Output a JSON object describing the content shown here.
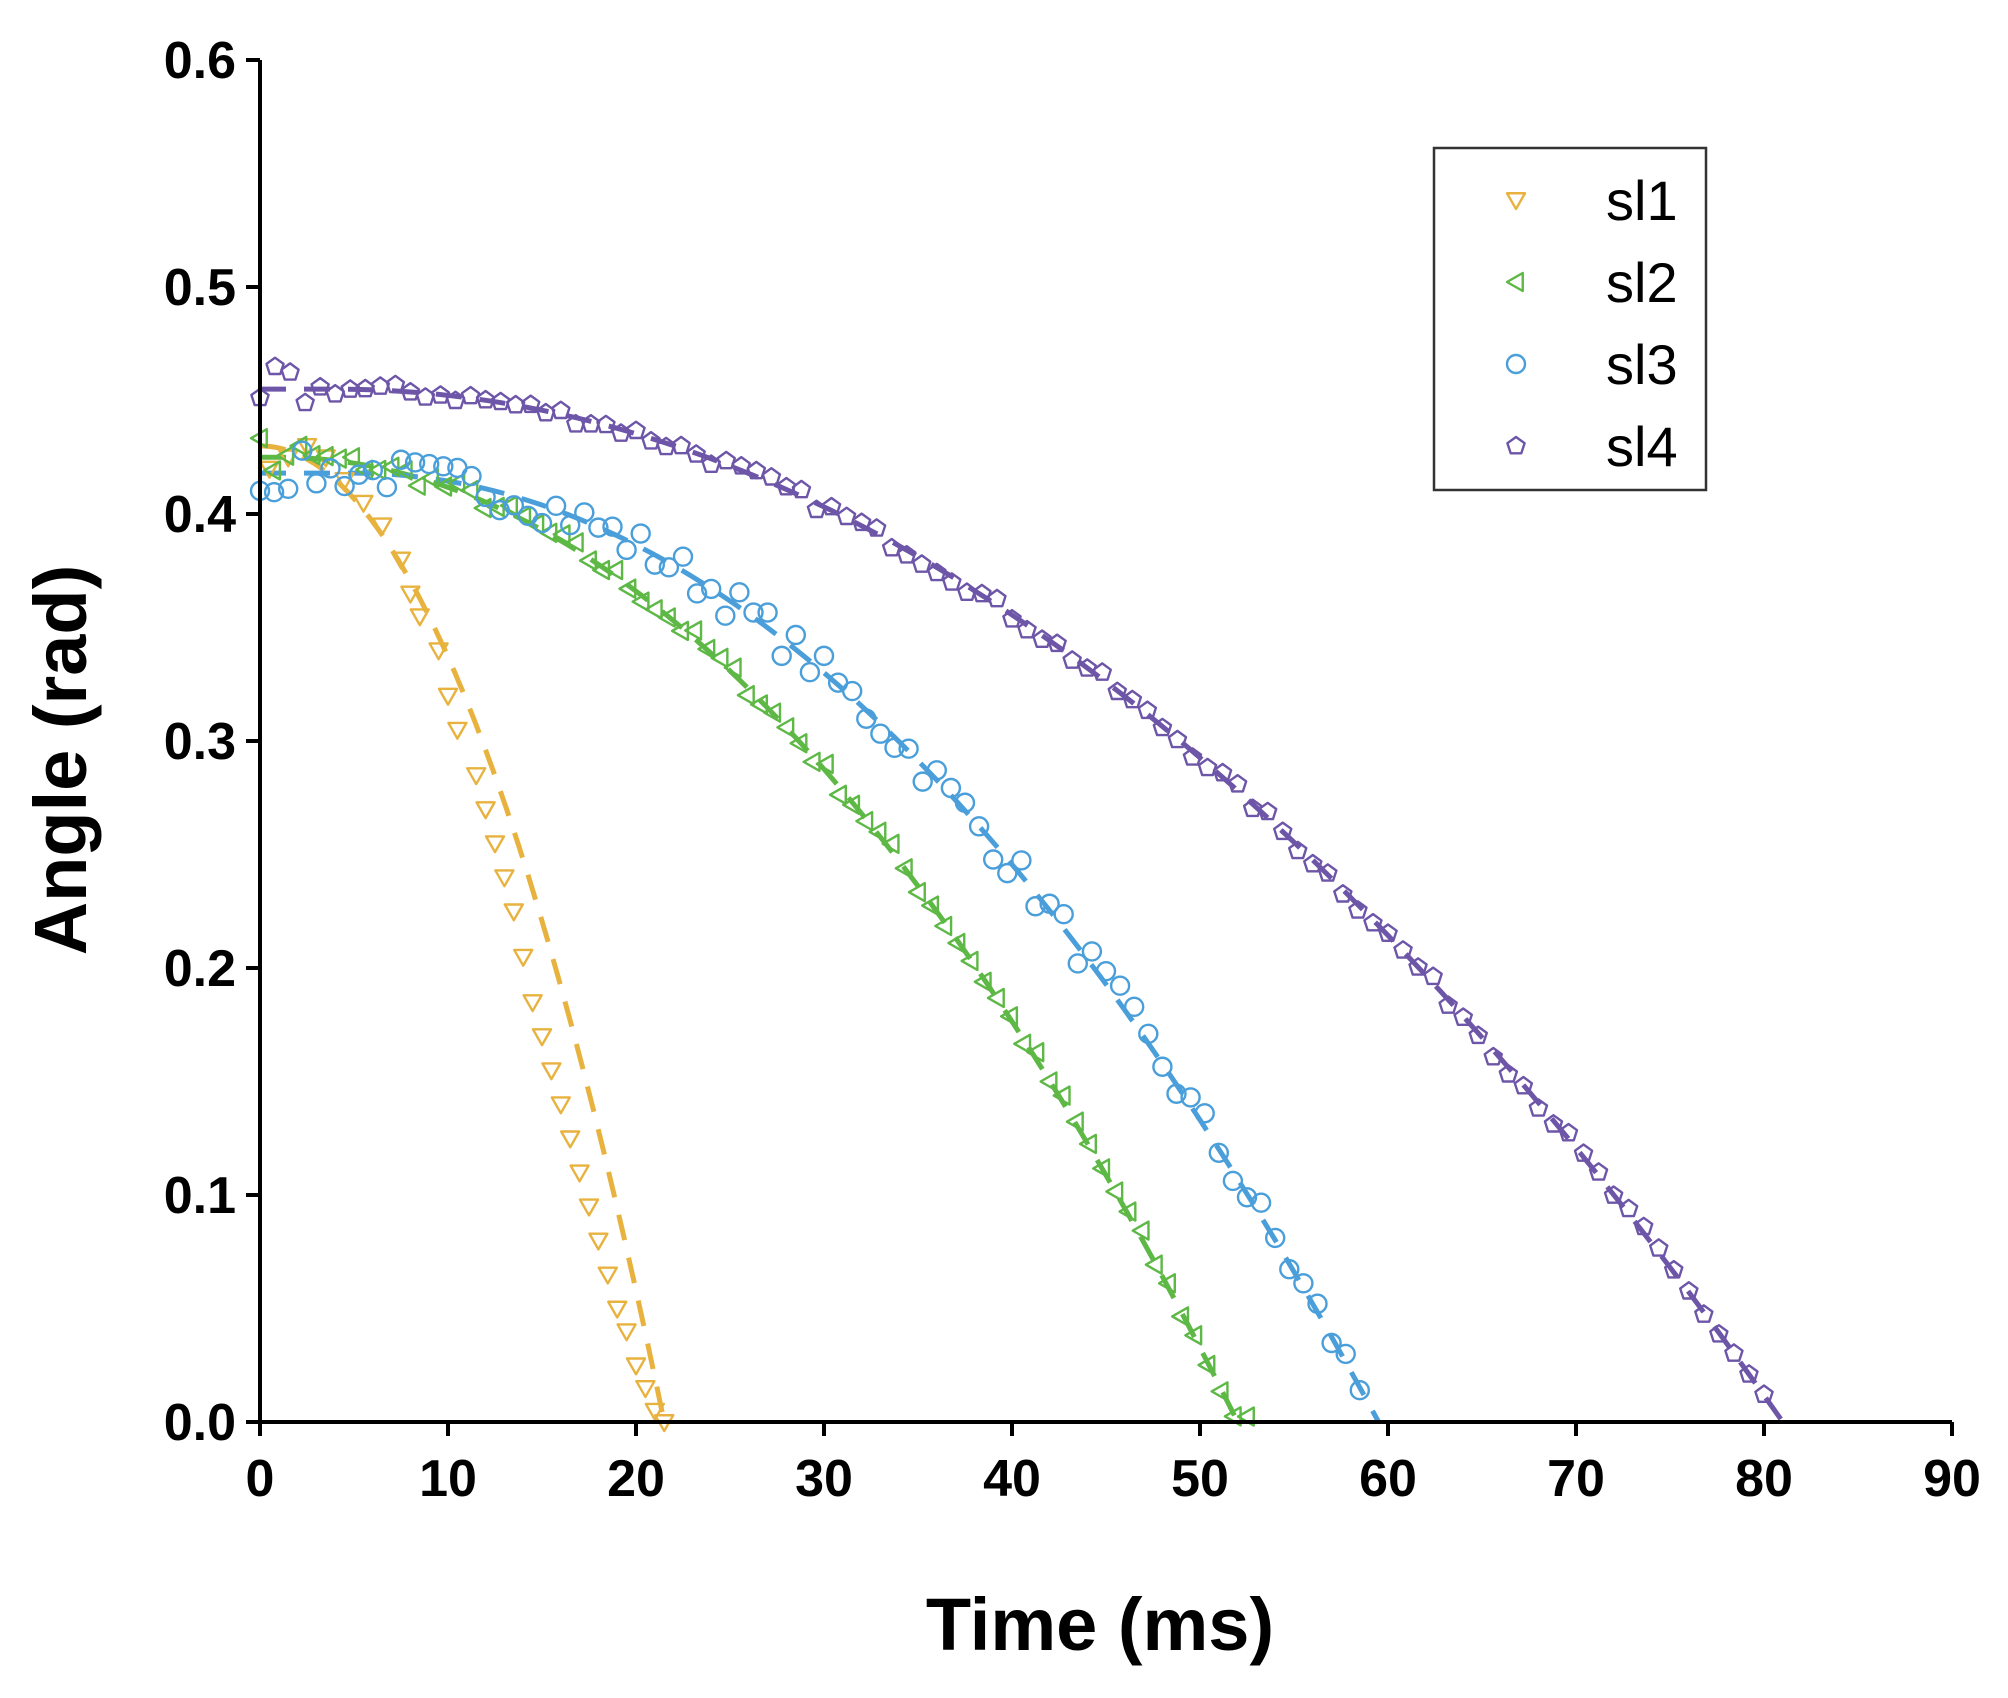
{
  "chart_data": {
    "type": "scatter",
    "xlabel": "Time (ms)",
    "ylabel": "Angle (rad)",
    "xlim": [
      0,
      90
    ],
    "ylim": [
      0,
      0.6
    ],
    "xticks": [
      0,
      10,
      20,
      30,
      40,
      50,
      60,
      70,
      80,
      90
    ],
    "yticks": [
      0.0,
      0.1,
      0.2,
      0.3,
      0.4,
      0.5,
      0.6
    ],
    "grid": false,
    "legend_position": "top-right",
    "series": [
      {
        "name": "sl1",
        "marker": "triangle-down",
        "color": "#E8B23F",
        "fit": {
          "style": "dashed",
          "shape": "parabolic-decay",
          "theta0": 0.43,
          "t0": 0,
          "t_end": 21.5
        },
        "points": [
          [
            0.5,
            0.42
          ],
          [
            1.5,
            0.425
          ],
          [
            2.5,
            0.43
          ],
          [
            3.5,
            0.425
          ],
          [
            4.5,
            0.415
          ],
          [
            5.5,
            0.405
          ],
          [
            6.5,
            0.395
          ],
          [
            7.5,
            0.38
          ],
          [
            8.0,
            0.365
          ],
          [
            8.5,
            0.355
          ],
          [
            9.5,
            0.34
          ],
          [
            10.0,
            0.32
          ],
          [
            10.5,
            0.305
          ],
          [
            11.5,
            0.285
          ],
          [
            12.0,
            0.27
          ],
          [
            12.5,
            0.255
          ],
          [
            13.0,
            0.24
          ],
          [
            13.5,
            0.225
          ],
          [
            14.0,
            0.205
          ],
          [
            14.5,
            0.185
          ],
          [
            15.0,
            0.17
          ],
          [
            15.5,
            0.155
          ],
          [
            16.0,
            0.14
          ],
          [
            16.5,
            0.125
          ],
          [
            17.0,
            0.11
          ],
          [
            17.5,
            0.095
          ],
          [
            18.0,
            0.08
          ],
          [
            18.5,
            0.065
          ],
          [
            19.0,
            0.05
          ],
          [
            19.5,
            0.04
          ],
          [
            20.0,
            0.025
          ],
          [
            20.5,
            0.015
          ],
          [
            21.0,
            0.005
          ],
          [
            21.5,
            0.0
          ]
        ]
      },
      {
        "name": "sl2",
        "marker": "triangle-left",
        "color": "#5DB845",
        "fit": {
          "style": "dashed",
          "shape": "parabolic-decay",
          "theta0": 0.425,
          "t0": 1,
          "t_end": 52
        }
      },
      {
        "name": "sl3",
        "marker": "circle",
        "color": "#4A9FDA",
        "fit": {
          "style": "dashed",
          "shape": "parabolic-decay",
          "theta0": 0.418,
          "t0": 5,
          "t_end": 59.5
        }
      },
      {
        "name": "sl4",
        "marker": "pentagon",
        "color": "#6D55A8",
        "fit": {
          "style": "dashed",
          "shape": "parabolic-decay",
          "theta0": 0.455,
          "t0": 4,
          "t_end": 81
        }
      }
    ]
  },
  "generated_points": {
    "sl2": {
      "t_start": 0,
      "t_end": 52.5,
      "step": 0.7,
      "noise": 0.004
    },
    "sl3": {
      "t_start": 0,
      "t_end": 59,
      "step": 0.75,
      "noise": 0.008
    },
    "sl4": {
      "t_start": 0,
      "t_end": 80.5,
      "step": 0.8,
      "noise": 0.003
    }
  }
}
